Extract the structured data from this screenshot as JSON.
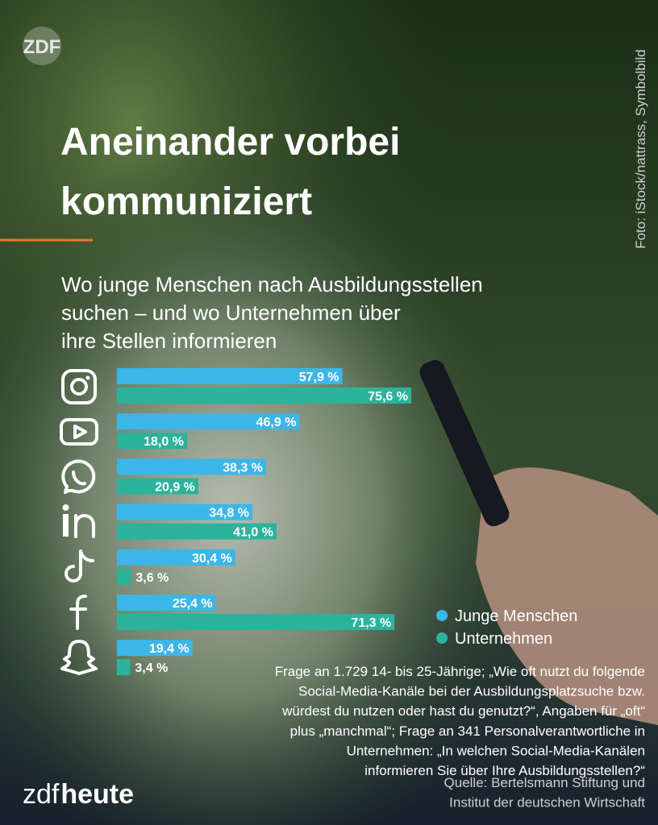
{
  "branding": {
    "logo": "ZDF",
    "brand_left": "zdf",
    "brand_right": "heute"
  },
  "chart_data": {
    "type": "bar",
    "orientation": "horizontal",
    "title": [
      "Aneinander vorbei",
      "kommuniziert"
    ],
    "subtitle": [
      "Wo junge Menschen nach Ausbildungsstellen",
      "suchen – und wo Unternehmen über",
      "ihre Stellen informieren"
    ],
    "photo_credit": "Foto: iStock/nattrass, Symbolbild",
    "categories": [
      null,
      null,
      null,
      null,
      null,
      null,
      null
    ],
    "series": [
      {
        "name": "Junge Menschen",
        "color": "#3cb6e8",
        "values": [
          57.9,
          46.9,
          38.3,
          34.8,
          30.4,
          25.4,
          19.4
        ],
        "value_labels": [
          "57,9 %",
          "46,9 %",
          "38,3 %",
          "34,8 %",
          "30,4 %",
          "25,4 %",
          "19,4 %"
        ]
      },
      {
        "name": "Unternehmen",
        "color": "#2bb39b",
        "values": [
          75.6,
          18.0,
          20.9,
          41.0,
          3.6,
          71.3,
          3.4
        ],
        "value_labels": [
          "75,6 %",
          "18,0 %",
          "20,9 %",
          "41,0 %",
          "3,6 %",
          "71,3 %",
          "3,4 %"
        ]
      }
    ],
    "note": [
      "Frage an 1.729 14- bis 25-Jährige; „Wie oft nutzt du folgende",
      "Social-Media-Kanäle bei der Ausbildungsplatzsuche bzw.",
      "würdest du nutzen oder hast du genutzt?“, Angaben für „oft“",
      "plus „manchmal“; Frage an 341 Personalverantwortliche in",
      "Unternehmen: „In welchen Social-Media-Kanälen",
      "informieren Sie über Ihre Ausbildungsstellen?“"
    ],
    "source": [
      "Quelle: Bertelsmann Stiftung und",
      "Institut der deutschen Wirtschaft"
    ]
  }
}
